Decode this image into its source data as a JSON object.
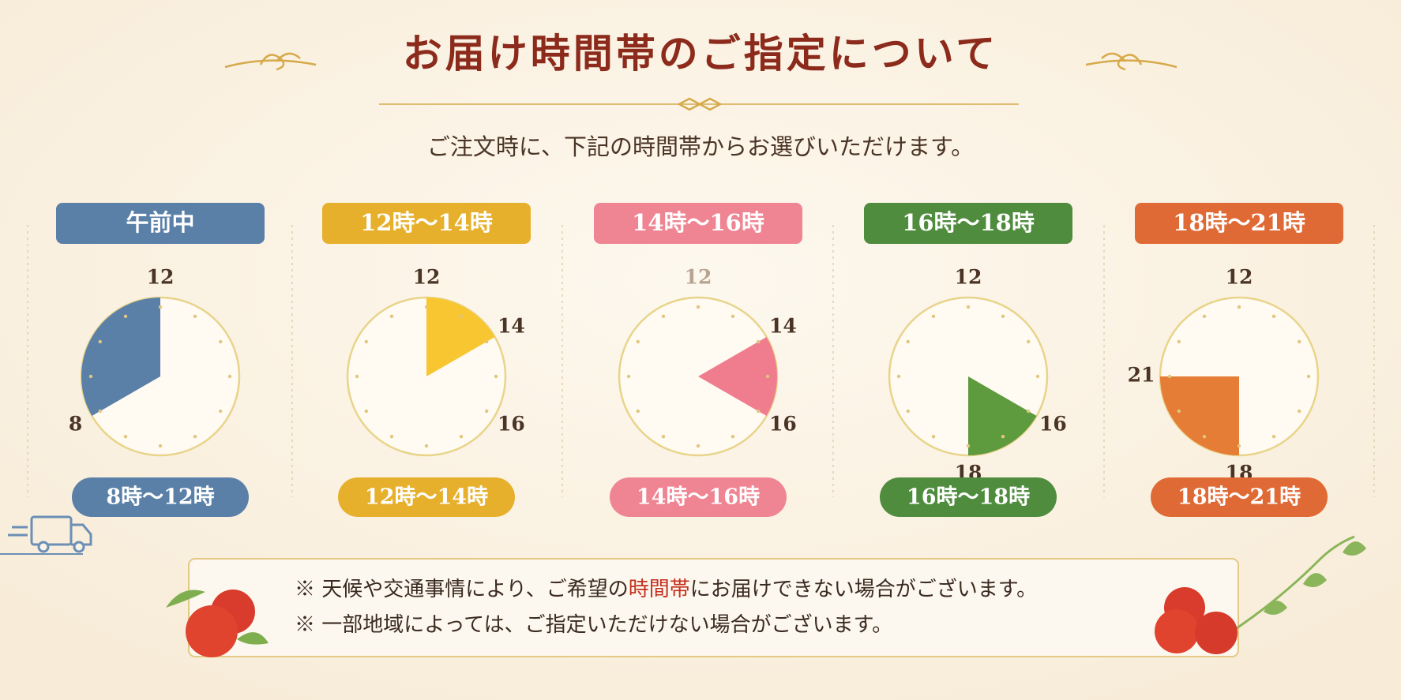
{
  "title": "お届け時間帯のご指定について",
  "subtitle": "ご注文時に、下記の時間帯からお選びいただけます。",
  "slots": [
    {
      "header": "午前中",
      "color": "#5a80a8",
      "wedge": "#5a80a8",
      "labels": [
        12,
        8
      ],
      "from": 8,
      "to": 12,
      "range": "8時～12時"
    },
    {
      "header": "12時～14時",
      "color": "#e7b02c",
      "wedge": "#f8c630",
      "labels": [
        12,
        14,
        16
      ],
      "from": 12,
      "to": 14,
      "range": "12時～14時"
    },
    {
      "header": "14時～16時",
      "color": "#ef8593",
      "wedge": "#f07d8d",
      "labels": [
        12,
        14,
        16
      ],
      "from": 14,
      "to": 16,
      "range": "14時～16時"
    },
    {
      "header": "16時～18時",
      "color": "#4f8c3e",
      "wedge": "#5e9a3e",
      "labels": [
        12,
        16,
        18
      ],
      "from": 16,
      "to": 18,
      "range": "16時～18時"
    },
    {
      "header": "18時～21時",
      "color": "#e06a35",
      "wedge": "#e57d36",
      "labels": [
        12,
        21,
        18
      ],
      "from": 18,
      "to": 21,
      "range": "18時～21時"
    }
  ],
  "notes": [
    [
      "※ 天候や交通事情により、ご希望の",
      "時間帯",
      "にお届けできない場合がございます。"
    ],
    [
      "※ 一部地域によっては、ご指定いただけない場合がございます。"
    ]
  ]
}
